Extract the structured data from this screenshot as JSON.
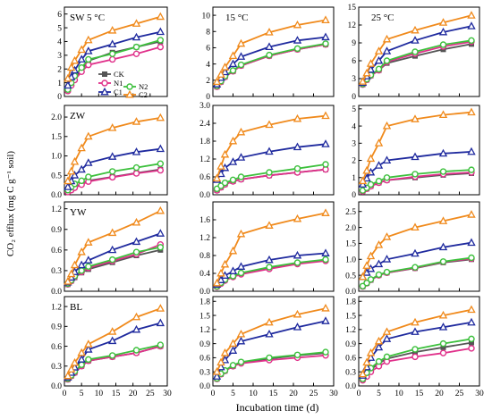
{
  "figure": {
    "ylabel": "CO₂ efflux (mg C g⁻¹ soil)",
    "xlabel": "Incubation time (d)",
    "legend": [
      "CK",
      "N1",
      "N2",
      "C1",
      "C2"
    ]
  },
  "series_styles": {
    "CK": {
      "color": "#555555",
      "marker": "square"
    },
    "N1": {
      "color": "#e0308a",
      "marker": "circle"
    },
    "N2": {
      "color": "#3cc03c",
      "marker": "circle"
    },
    "C1": {
      "color": "#1f2a9e",
      "marker": "triangle"
    },
    "C2": {
      "color": "#f08a1c",
      "marker": "triangle"
    }
  },
  "chart_data": [
    {
      "type": "line",
      "panel": "SW-5",
      "row_label": "SW",
      "col_label": "5 °C",
      "x": [
        1,
        2,
        3,
        5,
        7,
        14,
        21,
        28
      ],
      "ylim": [
        0,
        6.5
      ],
      "yticks": [
        0,
        1,
        2,
        3,
        4,
        5,
        6
      ],
      "xticks": [
        0,
        5,
        10,
        15,
        20,
        25,
        30
      ],
      "series": [
        {
          "name": "CK",
          "values": [
            0.5,
            0.9,
            1.3,
            1.9,
            2.6,
            3.2,
            3.6,
            4.0
          ]
        },
        {
          "name": "N1",
          "values": [
            0.4,
            0.8,
            1.2,
            1.8,
            2.3,
            2.7,
            3.1,
            3.6
          ]
        },
        {
          "name": "N2",
          "values": [
            0.5,
            1.0,
            1.5,
            2.1,
            2.7,
            3.1,
            3.6,
            4.1
          ]
        },
        {
          "name": "C1",
          "values": [
            0.8,
            1.4,
            1.9,
            2.7,
            3.3,
            3.8,
            4.3,
            4.7
          ]
        },
        {
          "name": "C2",
          "values": [
            1.3,
            2.1,
            2.6,
            3.4,
            4.1,
            4.8,
            5.3,
            5.8
          ]
        }
      ]
    },
    {
      "type": "line",
      "panel": "SW-15",
      "row_label": "",
      "col_label": "15 °C",
      "x": [
        1,
        2,
        3,
        5,
        7,
        14,
        21,
        28
      ],
      "ylim": [
        0,
        11
      ],
      "yticks": [
        0,
        2,
        4,
        6,
        8,
        10
      ],
      "xticks": [
        0,
        5,
        10,
        15,
        20,
        25,
        30
      ],
      "series": [
        {
          "name": "CK",
          "values": [
            1.2,
            1.8,
            2.4,
            3.1,
            3.8,
            5.0,
            5.8,
            6.4
          ]
        },
        {
          "name": "N1",
          "values": [
            1.2,
            1.8,
            2.4,
            3.1,
            3.8,
            5.0,
            5.8,
            6.4
          ]
        },
        {
          "name": "N2",
          "values": [
            1.3,
            1.9,
            2.5,
            3.2,
            3.9,
            5.1,
            5.9,
            6.5
          ]
        },
        {
          "name": "C1",
          "values": [
            1.5,
            2.3,
            3.0,
            4.0,
            4.9,
            6.1,
            6.9,
            7.3
          ]
        },
        {
          "name": "C2",
          "values": [
            1.8,
            2.7,
            3.6,
            5.0,
            6.5,
            7.9,
            8.8,
            9.4
          ]
        }
      ]
    },
    {
      "type": "line",
      "panel": "SW-25",
      "row_label": "",
      "col_label": "25 °C",
      "x": [
        1,
        2,
        3,
        5,
        7,
        14,
        21,
        28
      ],
      "ylim": [
        0,
        15
      ],
      "yticks": [
        0,
        3,
        6,
        9,
        12,
        15
      ],
      "xticks": [
        0,
        5,
        10,
        15,
        20,
        25,
        30
      ],
      "series": [
        {
          "name": "CK",
          "values": [
            2.0,
            2.8,
            3.5,
            4.4,
            5.6,
            6.8,
            7.9,
            8.8
          ]
        },
        {
          "name": "N1",
          "values": [
            2.0,
            2.8,
            3.5,
            4.4,
            5.8,
            7.2,
            8.4,
            9.2
          ]
        },
        {
          "name": "N2",
          "values": [
            2.1,
            2.9,
            3.6,
            4.6,
            6.0,
            7.5,
            8.7,
            9.4
          ]
        },
        {
          "name": "C1",
          "values": [
            2.3,
            3.4,
            4.5,
            6.0,
            7.6,
            9.4,
            10.8,
            11.8
          ]
        },
        {
          "name": "C2",
          "values": [
            2.5,
            3.9,
            5.5,
            7.6,
            9.6,
            11.1,
            12.4,
            13.6
          ]
        }
      ]
    },
    {
      "type": "line",
      "panel": "ZW-5",
      "row_label": "ZW",
      "col_label": "",
      "x": [
        1,
        2,
        3,
        5,
        7,
        14,
        21,
        28
      ],
      "ylim": [
        0,
        2.3
      ],
      "yticks": [
        0.0,
        0.5,
        1.0,
        1.5,
        2.0
      ],
      "xticks": [
        0,
        5,
        10,
        15,
        20,
        25,
        30
      ],
      "series": [
        {
          "name": "CK",
          "values": [
            0.08,
            0.13,
            0.2,
            0.28,
            0.36,
            0.46,
            0.56,
            0.65
          ]
        },
        {
          "name": "N1",
          "values": [
            0.07,
            0.12,
            0.18,
            0.26,
            0.34,
            0.45,
            0.55,
            0.63
          ]
        },
        {
          "name": "N2",
          "values": [
            0.12,
            0.2,
            0.28,
            0.36,
            0.46,
            0.6,
            0.7,
            0.8
          ]
        },
        {
          "name": "C1",
          "values": [
            0.2,
            0.35,
            0.5,
            0.65,
            0.82,
            0.98,
            1.1,
            1.18
          ]
        },
        {
          "name": "C2",
          "values": [
            0.35,
            0.6,
            0.85,
            1.2,
            1.5,
            1.72,
            1.88,
            1.98
          ]
        }
      ]
    },
    {
      "type": "line",
      "panel": "ZW-15",
      "row_label": "",
      "col_label": "",
      "x": [
        1,
        2,
        3,
        5,
        7,
        14,
        21,
        28
      ],
      "ylim": [
        0,
        3.0
      ],
      "yticks": [
        0.0,
        0.6,
        1.2,
        1.8,
        2.4,
        3.0
      ],
      "xticks": [
        0,
        5,
        10,
        15,
        20,
        25,
        30
      ],
      "series": [
        {
          "name": "CK",
          "values": [
            0.15,
            0.25,
            0.35,
            0.45,
            0.52,
            0.65,
            0.75,
            0.85
          ]
        },
        {
          "name": "N1",
          "values": [
            0.15,
            0.25,
            0.35,
            0.45,
            0.52,
            0.65,
            0.75,
            0.85
          ]
        },
        {
          "name": "N2",
          "values": [
            0.2,
            0.3,
            0.4,
            0.5,
            0.6,
            0.75,
            0.88,
            1.02
          ]
        },
        {
          "name": "C1",
          "values": [
            0.5,
            0.7,
            0.9,
            1.1,
            1.25,
            1.45,
            1.6,
            1.7
          ]
        },
        {
          "name": "C2",
          "values": [
            0.55,
            0.95,
            1.35,
            1.8,
            2.1,
            2.35,
            2.55,
            2.65
          ]
        }
      ]
    },
    {
      "type": "line",
      "panel": "ZW-25",
      "row_label": "",
      "col_label": "",
      "x": [
        1,
        2,
        3,
        5,
        7,
        14,
        21,
        28
      ],
      "ylim": [
        0,
        5.2
      ],
      "yticks": [
        0,
        1,
        2,
        3,
        4,
        5
      ],
      "xticks": [
        0,
        5,
        10,
        15,
        20,
        25,
        30
      ],
      "series": [
        {
          "name": "CK",
          "values": [
            0.2,
            0.35,
            0.5,
            0.7,
            0.85,
            1.0,
            1.15,
            1.25
          ]
        },
        {
          "name": "N1",
          "values": [
            0.2,
            0.35,
            0.5,
            0.7,
            0.85,
            1.05,
            1.2,
            1.3
          ]
        },
        {
          "name": "N2",
          "values": [
            0.25,
            0.4,
            0.6,
            0.8,
            1.0,
            1.2,
            1.35,
            1.45
          ]
        },
        {
          "name": "C1",
          "values": [
            0.6,
            0.95,
            1.3,
            1.7,
            2.0,
            2.2,
            2.4,
            2.5
          ]
        },
        {
          "name": "C2",
          "values": [
            0.8,
            1.4,
            2.1,
            3.0,
            4.0,
            4.4,
            4.65,
            4.8
          ]
        }
      ]
    },
    {
      "type": "line",
      "panel": "YW-5",
      "row_label": "YW",
      "col_label": "",
      "x": [
        1,
        2,
        3,
        5,
        7,
        14,
        21,
        28
      ],
      "ylim": [
        0,
        1.3
      ],
      "yticks": [
        0.0,
        0.3,
        0.6,
        0.9,
        1.2
      ],
      "xticks": [
        0,
        5,
        10,
        15,
        20,
        25,
        30
      ],
      "series": [
        {
          "name": "CK",
          "values": [
            0.1,
            0.15,
            0.2,
            0.27,
            0.32,
            0.42,
            0.52,
            0.6
          ]
        },
        {
          "name": "N1",
          "values": [
            0.1,
            0.15,
            0.21,
            0.28,
            0.34,
            0.44,
            0.54,
            0.68
          ]
        },
        {
          "name": "N2",
          "values": [
            0.11,
            0.16,
            0.22,
            0.3,
            0.36,
            0.46,
            0.57,
            0.64
          ]
        },
        {
          "name": "C1",
          "values": [
            0.13,
            0.2,
            0.28,
            0.38,
            0.45,
            0.6,
            0.72,
            0.84
          ]
        },
        {
          "name": "C2",
          "values": [
            0.14,
            0.25,
            0.38,
            0.57,
            0.71,
            0.85,
            1.0,
            1.17
          ]
        }
      ]
    },
    {
      "type": "line",
      "panel": "YW-15",
      "row_label": "",
      "col_label": "",
      "x": [
        1,
        2,
        3,
        5,
        7,
        14,
        21,
        28
      ],
      "ylim": [
        0,
        2.0
      ],
      "yticks": [
        0.0,
        0.4,
        0.8,
        1.2,
        1.6
      ],
      "xticks": [
        0,
        5,
        10,
        15,
        20,
        25,
        30
      ],
      "series": [
        {
          "name": "CK",
          "values": [
            0.1,
            0.18,
            0.25,
            0.33,
            0.4,
            0.52,
            0.62,
            0.7
          ]
        },
        {
          "name": "N1",
          "values": [
            0.1,
            0.17,
            0.24,
            0.32,
            0.38,
            0.5,
            0.61,
            0.68
          ]
        },
        {
          "name": "N2",
          "values": [
            0.11,
            0.19,
            0.26,
            0.34,
            0.41,
            0.54,
            0.64,
            0.71
          ]
        },
        {
          "name": "C1",
          "values": [
            0.15,
            0.25,
            0.35,
            0.45,
            0.55,
            0.7,
            0.8,
            0.85
          ]
        },
        {
          "name": "C2",
          "values": [
            0.18,
            0.4,
            0.6,
            0.9,
            1.28,
            1.47,
            1.62,
            1.75
          ]
        }
      ]
    },
    {
      "type": "line",
      "panel": "YW-25",
      "row_label": "",
      "col_label": "",
      "x": [
        1,
        2,
        3,
        5,
        7,
        14,
        21,
        28
      ],
      "ylim": [
        0,
        2.8
      ],
      "yticks": [
        0.0,
        0.5,
        1.0,
        1.5,
        2.0,
        2.5
      ],
      "xticks": [
        0,
        5,
        10,
        15,
        20,
        25,
        30
      ],
      "series": [
        {
          "name": "CK",
          "values": [
            0.15,
            0.25,
            0.35,
            0.5,
            0.58,
            0.72,
            0.9,
            1.0
          ]
        },
        {
          "name": "N1",
          "values": [
            0.15,
            0.25,
            0.36,
            0.5,
            0.58,
            0.73,
            0.92,
            1.02
          ]
        },
        {
          "name": "N2",
          "values": [
            0.16,
            0.26,
            0.37,
            0.52,
            0.6,
            0.75,
            0.93,
            1.05
          ]
        },
        {
          "name": "C1",
          "values": [
            0.45,
            0.58,
            0.7,
            0.85,
            1.0,
            1.18,
            1.38,
            1.52
          ]
        },
        {
          "name": "C2",
          "values": [
            0.45,
            0.8,
            1.1,
            1.45,
            1.7,
            2.0,
            2.2,
            2.4
          ]
        }
      ]
    },
    {
      "type": "line",
      "panel": "BL-5",
      "row_label": "BL",
      "col_label": "",
      "x": [
        1,
        2,
        3,
        5,
        7,
        14,
        21,
        28
      ],
      "ylim": [
        0,
        1.35
      ],
      "yticks": [
        0.0,
        0.3,
        0.6,
        0.9,
        1.2
      ],
      "xticks": [
        0,
        5,
        10,
        15,
        20,
        25,
        30
      ],
      "series": [
        {
          "name": "CK",
          "values": [
            0.1,
            0.15,
            0.2,
            0.3,
            0.38,
            0.44,
            0.5,
            0.6
          ]
        },
        {
          "name": "N1",
          "values": [
            0.1,
            0.15,
            0.2,
            0.3,
            0.38,
            0.44,
            0.5,
            0.6
          ]
        },
        {
          "name": "N2",
          "values": [
            0.11,
            0.16,
            0.22,
            0.32,
            0.4,
            0.46,
            0.54,
            0.62
          ]
        },
        {
          "name": "C1",
          "values": [
            0.13,
            0.2,
            0.28,
            0.4,
            0.55,
            0.68,
            0.85,
            0.95
          ]
        },
        {
          "name": "C2",
          "values": [
            0.15,
            0.25,
            0.35,
            0.5,
            0.63,
            0.82,
            1.04,
            1.17
          ]
        }
      ]
    },
    {
      "type": "line",
      "panel": "BL-15",
      "row_label": "",
      "col_label": "",
      "x": [
        1,
        2,
        3,
        5,
        7,
        14,
        21,
        28
      ],
      "ylim": [
        0,
        1.9
      ],
      "yticks": [
        0.0,
        0.3,
        0.6,
        0.9,
        1.2,
        1.5,
        1.8
      ],
      "xticks": [
        0,
        5,
        10,
        15,
        20,
        25,
        30
      ],
      "series": [
        {
          "name": "CK",
          "values": [
            0.15,
            0.25,
            0.32,
            0.42,
            0.5,
            0.58,
            0.65,
            0.7
          ]
        },
        {
          "name": "N1",
          "values": [
            0.15,
            0.25,
            0.32,
            0.42,
            0.48,
            0.55,
            0.6,
            0.65
          ]
        },
        {
          "name": "N2",
          "values": [
            0.16,
            0.26,
            0.33,
            0.44,
            0.51,
            0.6,
            0.66,
            0.72
          ]
        },
        {
          "name": "C1",
          "values": [
            0.2,
            0.4,
            0.55,
            0.75,
            0.95,
            1.1,
            1.25,
            1.38
          ]
        },
        {
          "name": "C2",
          "values": [
            0.3,
            0.5,
            0.7,
            0.9,
            1.1,
            1.35,
            1.52,
            1.65
          ]
        }
      ]
    },
    {
      "type": "line",
      "panel": "BL-25",
      "row_label": "",
      "col_label": "",
      "x": [
        1,
        2,
        3,
        5,
        7,
        14,
        21,
        28
      ],
      "ylim": [
        0,
        1.9
      ],
      "yticks": [
        0.0,
        0.3,
        0.6,
        0.9,
        1.2,
        1.5,
        1.8
      ],
      "xticks": [
        0,
        5,
        10,
        15,
        20,
        25,
        30
      ],
      "series": [
        {
          "name": "CK",
          "values": [
            0.15,
            0.25,
            0.35,
            0.48,
            0.58,
            0.72,
            0.82,
            0.92
          ]
        },
        {
          "name": "N1",
          "values": [
            0.12,
            0.2,
            0.3,
            0.42,
            0.52,
            0.62,
            0.7,
            0.8
          ]
        },
        {
          "name": "N2",
          "values": [
            0.15,
            0.28,
            0.38,
            0.52,
            0.62,
            0.78,
            0.9,
            1.0
          ]
        },
        {
          "name": "C1",
          "values": [
            0.22,
            0.4,
            0.6,
            0.82,
            1.0,
            1.15,
            1.25,
            1.35
          ]
        },
        {
          "name": "C2",
          "values": [
            0.25,
            0.5,
            0.7,
            0.95,
            1.15,
            1.35,
            1.5,
            1.62
          ]
        }
      ]
    }
  ]
}
